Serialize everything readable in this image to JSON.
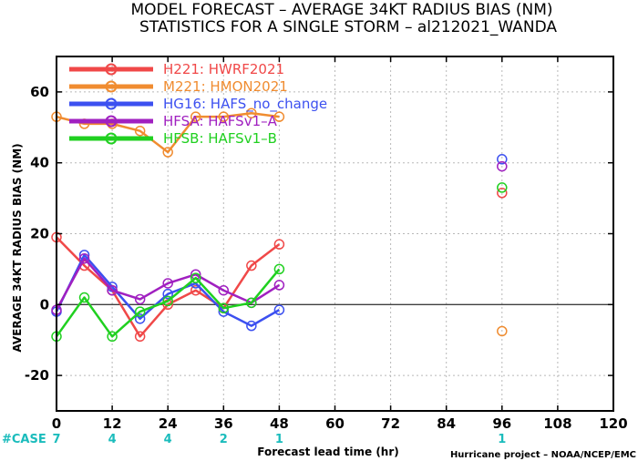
{
  "title_line1": "MODEL FORECAST – AVERAGE 34KT RADIUS BIAS (NM)",
  "title_line2": "STATISTICS FOR A SINGLE STORM – al212021_WANDA",
  "ylabel": "AVERAGE 34KT RADIUS BIAS (NM)",
  "xlabel": "Forecast lead time (hr)",
  "case_label": "#CASE",
  "credit": "Hurricane project – NOAA/NCEP/EMC",
  "colors": {
    "case": "#1bbcbc",
    "zero_line": "#404040",
    "grid": "#b8b8b8"
  },
  "chart_data": {
    "type": "line",
    "title": "MODEL FORECAST – AVERAGE 34KT RADIUS BIAS (NM)",
    "xlabel": "Forecast lead time (hr)",
    "ylabel": "AVERAGE 34KT RADIUS BIAS (NM)",
    "xlim": [
      0,
      120
    ],
    "ylim": [
      -30,
      70
    ],
    "xticks": [
      0,
      12,
      24,
      36,
      48,
      60,
      72,
      84,
      96,
      108,
      120
    ],
    "yticks": [
      -20,
      0,
      20,
      40,
      60
    ],
    "grid": true,
    "legend_position": "top-left",
    "cases": [
      {
        "x": 0,
        "n": "7"
      },
      {
        "x": 12,
        "n": "4"
      },
      {
        "x": 24,
        "n": "4"
      },
      {
        "x": 36,
        "n": "2"
      },
      {
        "x": 48,
        "n": "1"
      },
      {
        "x": 96,
        "n": "1"
      }
    ],
    "series": [
      {
        "name": "H221: HWRF2021",
        "color": "#f04848",
        "x": [
          0,
          6,
          12,
          18,
          24,
          30,
          36,
          42,
          48
        ],
        "values": [
          19,
          11,
          4,
          -9,
          0,
          4,
          -1,
          11,
          17
        ],
        "isolated": [
          {
            "x": 96,
            "y": 31.5
          }
        ]
      },
      {
        "name": "M221: HMON2021",
        "color": "#f08c30",
        "x": [
          0,
          6,
          12,
          18,
          24,
          30,
          36,
          42,
          48
        ],
        "values": [
          53,
          51,
          51,
          49,
          43,
          53,
          53,
          54,
          53
        ],
        "isolated": [
          {
            "x": 96,
            "y": -7.5
          }
        ]
      },
      {
        "name": "HG16: HAFS_no_change",
        "color": "#3c50f0",
        "x": [
          0,
          6,
          12,
          18,
          24,
          30,
          36,
          42,
          48
        ],
        "values": [
          -2,
          14,
          5,
          -4,
          3,
          6,
          -2,
          -6,
          -1.5
        ],
        "isolated": [
          {
            "x": 96,
            "y": 41
          }
        ]
      },
      {
        "name": "HFSA: HAFSv1–A",
        "color": "#a020c0",
        "x": [
          0,
          6,
          12,
          18,
          24,
          30,
          36,
          42,
          48
        ],
        "values": [
          -1.5,
          13,
          4,
          1.5,
          6,
          8.5,
          4,
          0.5,
          5.5
        ],
        "isolated": [
          {
            "x": 96,
            "y": 39
          }
        ]
      },
      {
        "name": "HFSB: HAFSv1–B",
        "color": "#20d020",
        "x": [
          0,
          6,
          12,
          18,
          24,
          30,
          36,
          42,
          48
        ],
        "values": [
          -9,
          2,
          -9,
          -2,
          1,
          7.5,
          -1,
          0.5,
          10
        ],
        "isolated": [
          {
            "x": 96,
            "y": 33
          }
        ]
      }
    ]
  }
}
